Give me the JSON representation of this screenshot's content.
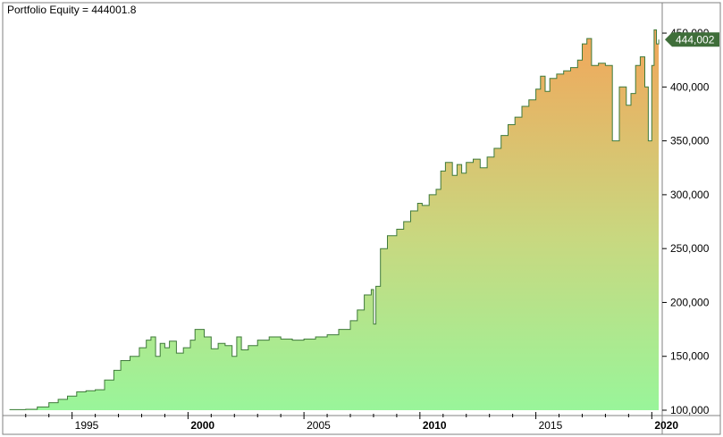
{
  "chart_data": {
    "type": "area",
    "title": "Portfolio Equity = 444001.8",
    "xlabel": "",
    "ylabel": "",
    "xlim": [
      1992.2,
      2020.45
    ],
    "ylim": [
      100000,
      460000
    ],
    "y_ticks": [
      100000,
      150000,
      200000,
      250000,
      300000,
      350000,
      400000,
      450000
    ],
    "y_tick_labels": [
      "100,000",
      "150,000",
      "200,000",
      "250,000",
      "300,000",
      "350,000",
      "400,000",
      "450,000"
    ],
    "x_ticks": [
      1995,
      2000,
      2005,
      2010,
      2015,
      2020
    ],
    "x_tick_labels": [
      "1995",
      "2000",
      "2005",
      "2010",
      "2015",
      "2020"
    ],
    "x_tick_bold": [
      false,
      true,
      false,
      true,
      false,
      true
    ],
    "last_value_label": "444,002",
    "last_value": 444002,
    "grid": false,
    "legend": "none",
    "series": [
      {
        "x": [
          1992.3,
          1993.0,
          1993.5,
          1994.0,
          1994.4,
          1994.8,
          1995.2,
          1995.6,
          1996.0,
          1996.4,
          1996.8,
          1997.1,
          1997.5,
          1997.9,
          1998.2,
          1998.4,
          1998.6,
          1998.8,
          1999.0,
          1999.2,
          1999.5,
          1999.8,
          2000.1,
          2000.3,
          2000.7,
          2001.0,
          2001.3,
          2001.6,
          2001.9,
          2002.1,
          2002.3,
          2002.6,
          2003.0,
          2003.5,
          2004.0,
          2004.5,
          2005.0,
          2005.5,
          2006.0,
          2006.5,
          2007.0,
          2007.3,
          2007.6,
          2007.9,
          2008.0,
          2008.1,
          2008.3,
          2008.6,
          2009.0,
          2009.3,
          2009.6,
          2009.9,
          2010.1,
          2010.4,
          2010.7,
          2010.9,
          2011.1,
          2011.4,
          2011.6,
          2011.8,
          2012.0,
          2012.3,
          2012.6,
          2012.9,
          2013.2,
          2013.5,
          2013.8,
          2014.1,
          2014.4,
          2014.7,
          2015.0,
          2015.2,
          2015.4,
          2015.6,
          2015.9,
          2016.2,
          2016.5,
          2016.8,
          2017.0,
          2017.2,
          2017.4,
          2017.7,
          2018.0,
          2018.3,
          2018.6,
          2018.9,
          2019.1,
          2019.3,
          2019.5,
          2019.7,
          2019.85,
          2020.0,
          2020.1,
          2020.2,
          2020.3
        ],
        "values": [
          100500,
          100800,
          103000,
          107000,
          110000,
          113000,
          117000,
          118000,
          119000,
          128000,
          137000,
          146000,
          150000,
          158000,
          165000,
          168000,
          150000,
          162000,
          158000,
          164000,
          153000,
          158000,
          165000,
          175000,
          168000,
          157000,
          162000,
          160000,
          150000,
          168000,
          156000,
          160000,
          165000,
          168000,
          166000,
          165000,
          166000,
          168000,
          170000,
          175000,
          183000,
          193000,
          207000,
          212000,
          180000,
          215000,
          250000,
          262000,
          268000,
          275000,
          285000,
          292000,
          290000,
          300000,
          305000,
          322000,
          330000,
          318000,
          328000,
          320000,
          330000,
          333000,
          325000,
          335000,
          343000,
          355000,
          365000,
          372000,
          382000,
          388000,
          398000,
          410000,
          396000,
          408000,
          412000,
          415000,
          418000,
          425000,
          440000,
          445000,
          420000,
          422000,
          420000,
          350000,
          400000,
          383000,
          394000,
          420000,
          428000,
          400000,
          350000,
          420000,
          453000,
          440000,
          444000
        ]
      }
    ]
  }
}
